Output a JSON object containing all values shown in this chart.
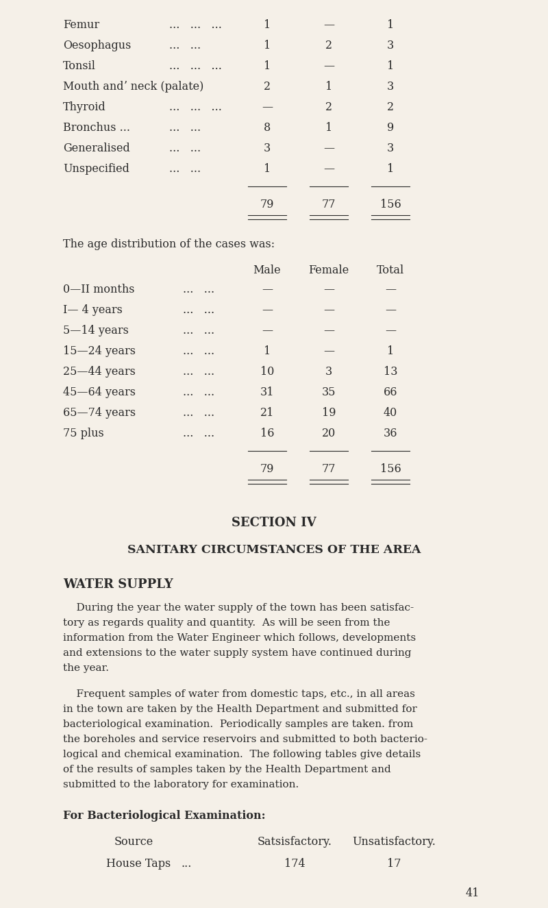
{
  "bg_color": "#f5f0e8",
  "text_color": "#2a2a2a",
  "page_number": "41",
  "table1_rows": [
    {
      "label": "Femur",
      "ldots": "...   ...   ...",
      "male": "1",
      "female": "—",
      "total": "1"
    },
    {
      "label": "Oesophagus",
      "ldots": "...   ...",
      "male": "1",
      "female": "2",
      "total": "3"
    },
    {
      "label": "Tonsil",
      "ldots": "...   ...   ...",
      "male": "1",
      "female": "—",
      "total": "1"
    },
    {
      "label": "Mouth andʼ neck (palate)",
      "ldots": "",
      "male": "2",
      "female": "1",
      "total": "3"
    },
    {
      "label": "Thyroid",
      "ldots": "...   ...   ...",
      "male": "—",
      "female": "2",
      "total": "2"
    },
    {
      "label": "Bronchus ...",
      "ldots": "...   ...",
      "male": "8",
      "female": "1",
      "total": "9"
    },
    {
      "label": "Generalised",
      "ldots": "...   ...",
      "male": "3",
      "female": "—",
      "total": "3"
    },
    {
      "label": "Unspecified",
      "ldots": "...   ...",
      "male": "1",
      "female": "—",
      "total": "1"
    }
  ],
  "t1_total_male": "79",
  "t1_total_female": "77",
  "t1_total_total": "156",
  "age_intro": "The age distribution of the cases was:",
  "table2_rows": [
    {
      "label": "0—II months",
      "ldots": "...   ...",
      "male": "—",
      "female": "—",
      "total": "—"
    },
    {
      "label": "I— 4 years",
      "ldots": "...   ...",
      "male": "—",
      "female": "—",
      "total": "—"
    },
    {
      "label": "5—14 years",
      "ldots": "...   ...",
      "male": "—",
      "female": "—",
      "total": "—"
    },
    {
      "label": "15—24 years",
      "ldots": "...   ...",
      "male": "1",
      "female": "—",
      "total": "1"
    },
    {
      "label": "25—44 years",
      "ldots": "...   ...",
      "male": "10",
      "female": "3",
      "total": "13"
    },
    {
      "label": "45—64 years",
      "ldots": "...   ...",
      "male": "31",
      "female": "35",
      "total": "66"
    },
    {
      "label": "65—74 years",
      "ldots": "...   ...",
      "male": "21",
      "female": "19",
      "total": "40"
    },
    {
      "label": "75 plus",
      "ldots": "...   ...",
      "male": "16",
      "female": "20",
      "total": "36"
    }
  ],
  "t2_total_male": "79",
  "t2_total_female": "77",
  "t2_total_total": "156",
  "section_heading": "SECTION IV",
  "sub_heading": "SANITARY CIRCUMSTANCES OF THE AREA",
  "water_heading": "WATER SUPPLY",
  "para1_lines": [
    "    During the year the water supply of the town has been satisfac-",
    "tory as regards quality and quantity.  As will be seen from the",
    "information from the Water Engineer which follows, developments",
    "and extensions to the water supply system have continued during",
    "the year."
  ],
  "para2_lines": [
    "    Frequent samples of water from domestic taps, etc., in all areas",
    "in the town are taken by the Health Department and submitted for",
    "bacteriological examination.  Periodically samples are taken. from",
    "the boreholes and service reservoirs and submitted to both bacterio-",
    "logical and chemical examination.  The following tables give details",
    "of the results of samples taken by the Health Department and",
    "submitted to the laboratory for examination."
  ],
  "bact_heading": "For Bacteriological Examination:",
  "bact_col1": "Source",
  "bact_col2": "Satsisfactory.",
  "bact_col3": "Unsatisfactory.",
  "bact_row_label": "House Taps",
  "bact_row_dots": "...",
  "bact_row_val1": "174",
  "bact_row_val2": "17"
}
